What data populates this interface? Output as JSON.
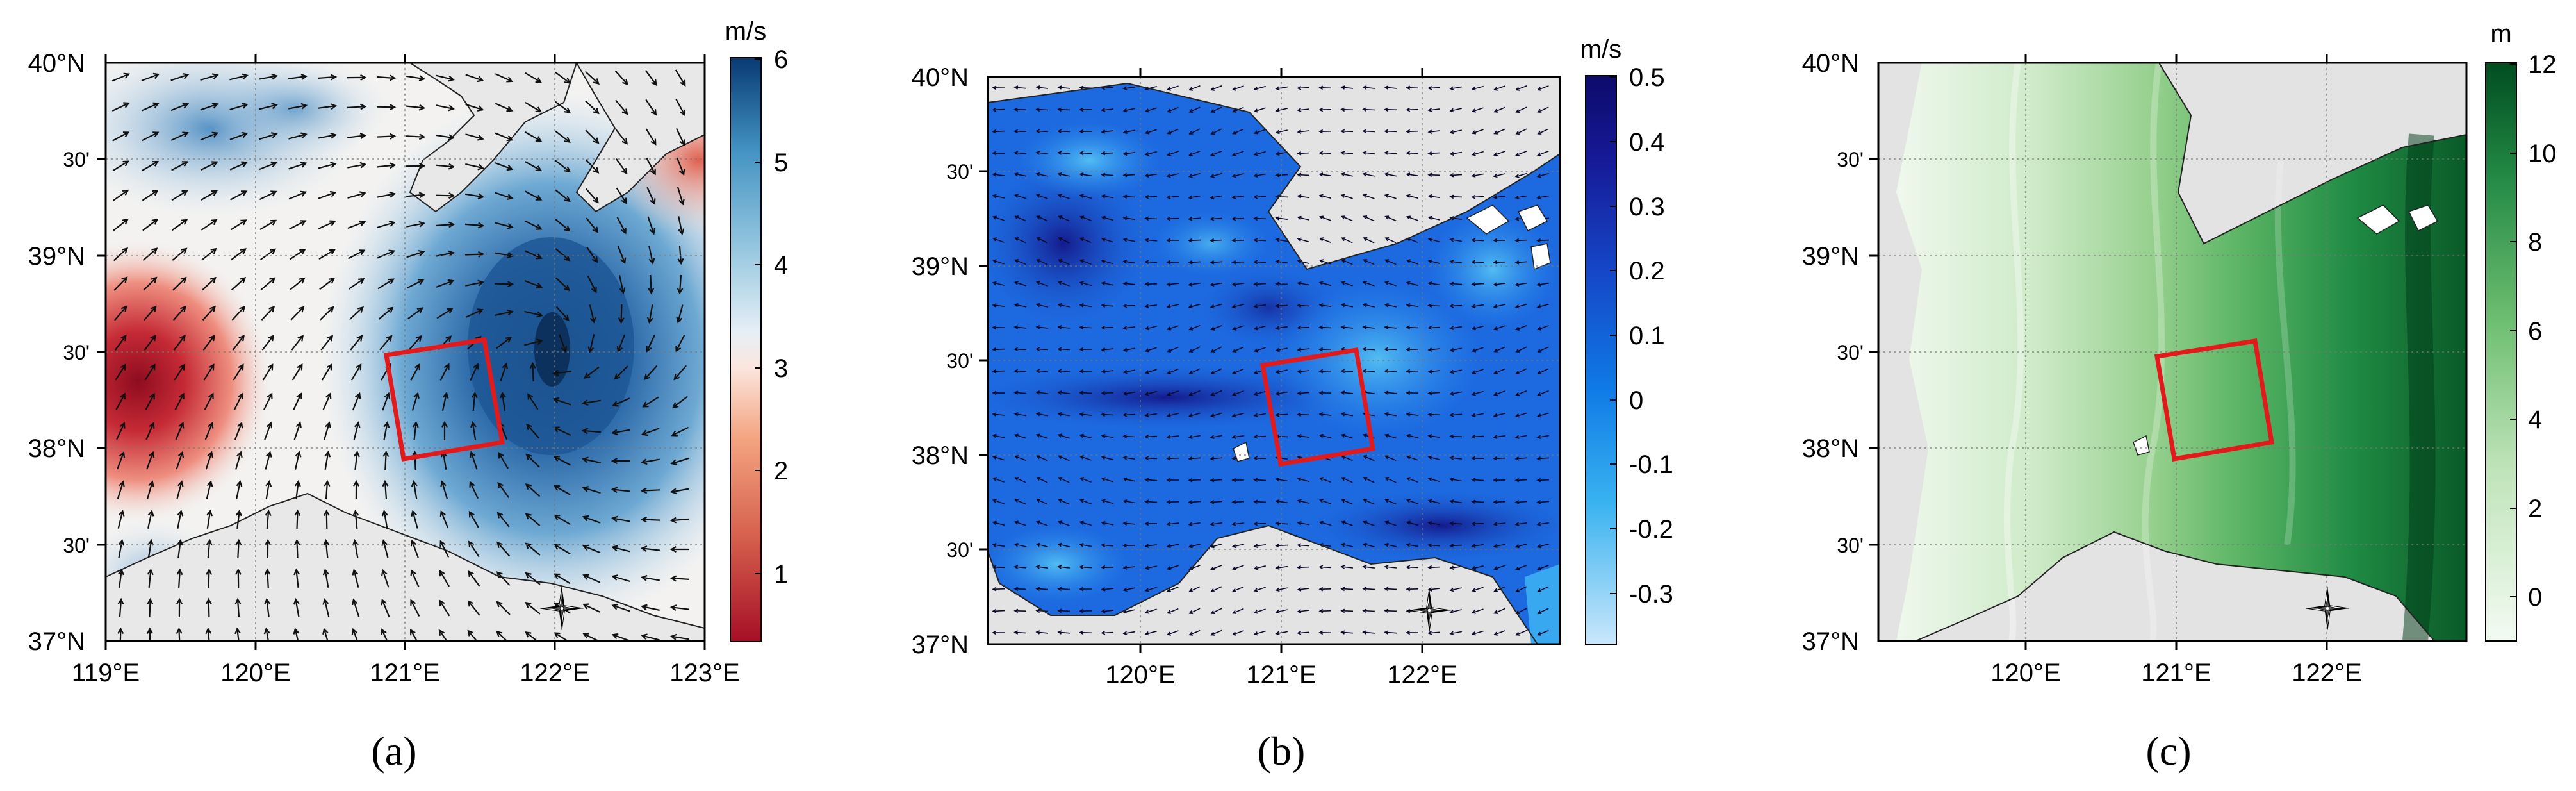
{
  "panels": [
    {
      "id": "a",
      "label": "(a)",
      "lon_ticks": [
        "119°E",
        "120°E",
        "121°E",
        "122°E",
        "123°E"
      ],
      "lat_ticks": [
        "40°N",
        "30'",
        "39°N",
        "30'",
        "38°N",
        "30'",
        "37°N"
      ],
      "colorbar": {
        "unit": "m/s",
        "ticks": [
          "6",
          "5",
          "4",
          "3",
          "2",
          "1"
        ],
        "range": [
          0.2,
          6
        ],
        "colormap": "red-white-blue diverging",
        "low_color": "#a50f26",
        "high_color": "#083a72"
      },
      "field": "wind speed with wind vectors"
    },
    {
      "id": "b",
      "label": "(b)",
      "lon_ticks": [
        "120°E",
        "121°E",
        "122°E"
      ],
      "lat_ticks": [
        "40°N",
        "30'",
        "39°N",
        "30'",
        "38°N",
        "30'",
        "37°N"
      ],
      "colorbar": {
        "unit": "m/s",
        "ticks": [
          "0.5",
          "0.4",
          "0.3",
          "0.2",
          "0.1",
          "0",
          "-0.1",
          "-0.2",
          "-0.3"
        ],
        "range": [
          -0.38,
          0.5
        ],
        "colormap": "light blue to dark navy",
        "low_color": "#c9e7fb",
        "high_color": "#0d0a6b"
      },
      "field": "surface current with current vectors"
    },
    {
      "id": "c",
      "label": "(c)",
      "lon_ticks": [
        "120°E",
        "121°E",
        "122°E"
      ],
      "lat_ticks": [
        "40°N",
        "30'",
        "39°N",
        "30'",
        "38°N",
        "30'",
        "37°N"
      ],
      "colorbar": {
        "unit": "m",
        "ticks": [
          "12",
          "10",
          "8",
          "6",
          "4",
          "2",
          "0"
        ],
        "range": [
          -1,
          12
        ],
        "colormap": "white to dark green",
        "low_color": "#f3fbf2",
        "high_color": "#004d20"
      },
      "field": "tidal amplitude/water level"
    }
  ],
  "study_area_color": "#e31a1c",
  "land_color": "#e3e3e3",
  "north_arrow_icon": "compass-rose-icon"
}
